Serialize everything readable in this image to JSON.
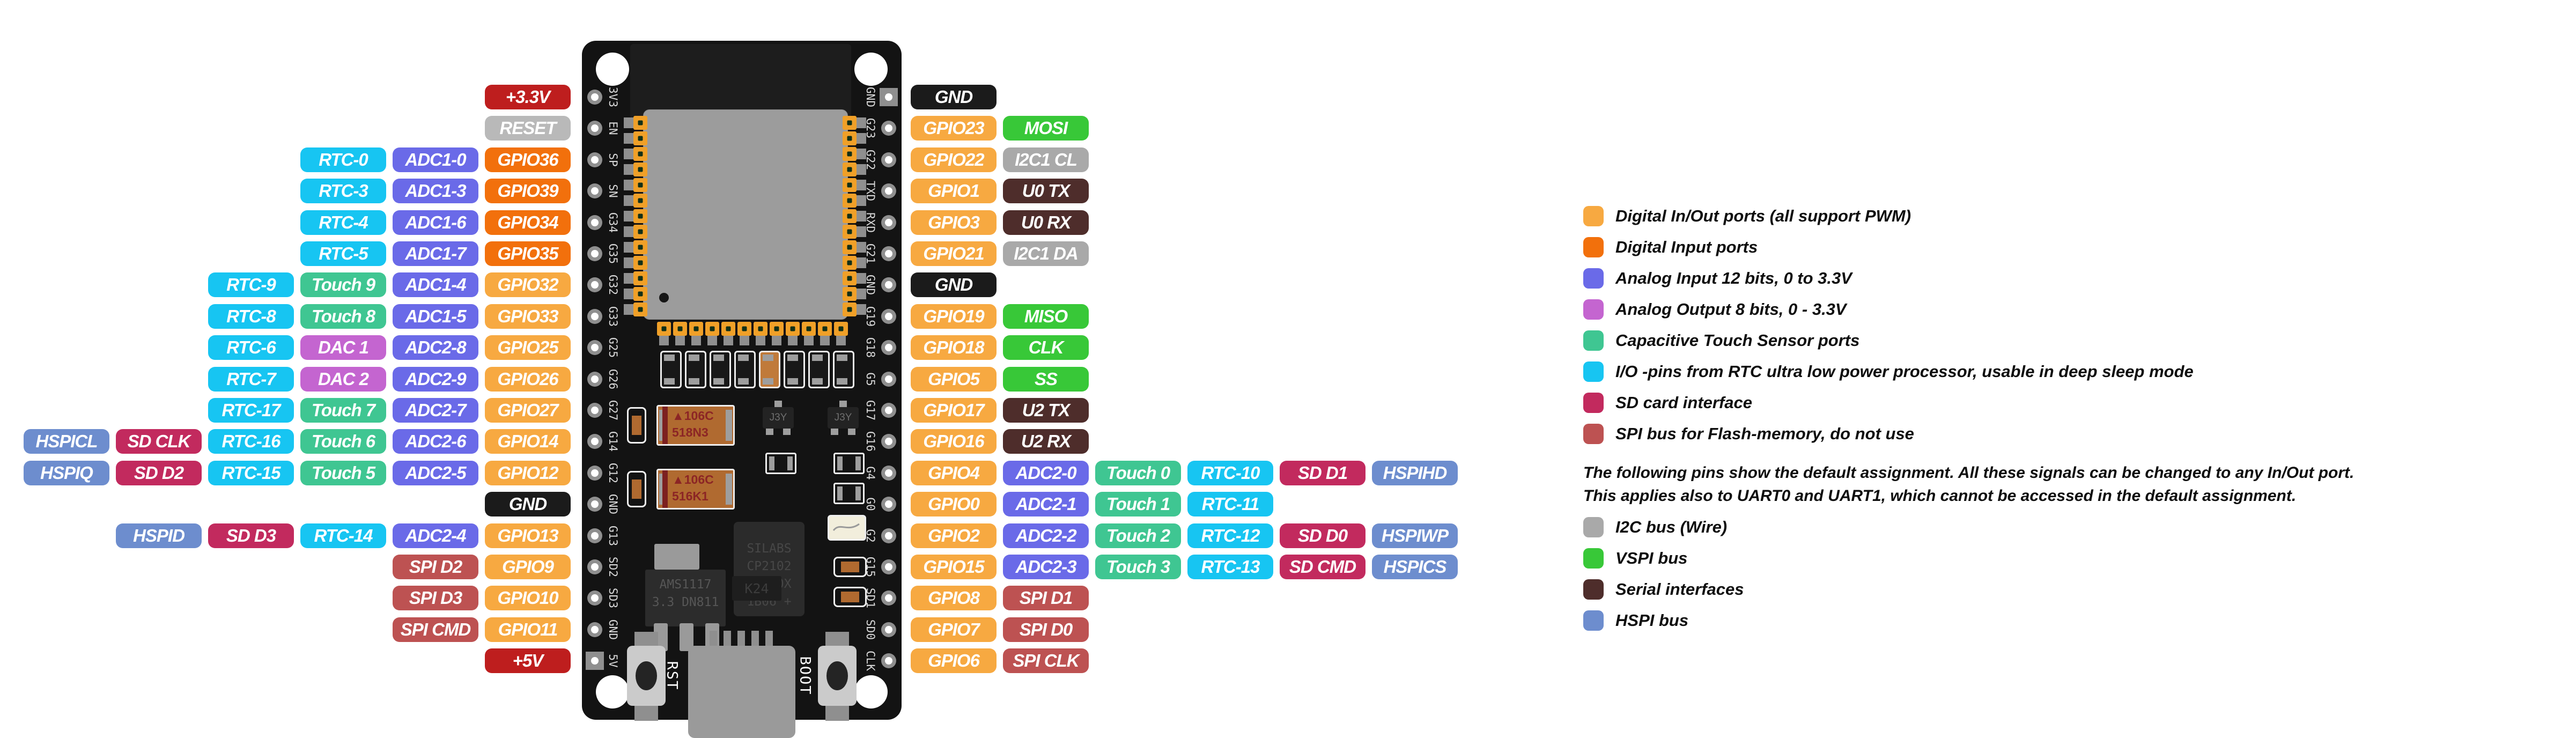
{
  "colors": {
    "io": "#F7A941",
    "in": "#F2700C",
    "adc": "#6A6AE8",
    "dac": "#C465D0",
    "touch": "#3FC692",
    "rtc": "#17C5F2",
    "sd": "#C22A5E",
    "spiflash": "#BD5252",
    "i2c": "#A9A9A9",
    "vspi": "#38C838",
    "serial": "#4E2D2B",
    "hspi": "#6D8DCE",
    "gnd": "#1B1B1B",
    "power": "#BE1E1E",
    "reset": "#B9B9B9"
  },
  "pins": {
    "left_rows": [
      [
        [
          "+3.3V",
          "power"
        ]
      ],
      [
        [
          "RESET",
          "reset"
        ]
      ],
      [
        [
          "RTC-0",
          "rtc"
        ],
        [
          "ADC1-0",
          "adc"
        ],
        [
          "GPIO36",
          "in"
        ]
      ],
      [
        [
          "RTC-3",
          "rtc"
        ],
        [
          "ADC1-3",
          "adc"
        ],
        [
          "GPIO39",
          "in"
        ]
      ],
      [
        [
          "RTC-4",
          "rtc"
        ],
        [
          "ADC1-6",
          "adc"
        ],
        [
          "GPIO34",
          "in"
        ]
      ],
      [
        [
          "RTC-5",
          "rtc"
        ],
        [
          "ADC1-7",
          "adc"
        ],
        [
          "GPIO35",
          "in"
        ]
      ],
      [
        [
          "RTC-9",
          "rtc"
        ],
        [
          "Touch 9",
          "touch"
        ],
        [
          "ADC1-4",
          "adc"
        ],
        [
          "GPIO32",
          "io"
        ]
      ],
      [
        [
          "RTC-8",
          "rtc"
        ],
        [
          "Touch 8",
          "touch"
        ],
        [
          "ADC1-5",
          "adc"
        ],
        [
          "GPIO33",
          "io"
        ]
      ],
      [
        [
          "RTC-6",
          "rtc"
        ],
        [
          "DAC 1",
          "dac"
        ],
        [
          "ADC2-8",
          "adc"
        ],
        [
          "GPIO25",
          "io"
        ]
      ],
      [
        [
          "RTC-7",
          "rtc"
        ],
        [
          "DAC 2",
          "dac"
        ],
        [
          "ADC2-9",
          "adc"
        ],
        [
          "GPIO26",
          "io"
        ]
      ],
      [
        [
          "RTC-17",
          "rtc"
        ],
        [
          "Touch 7",
          "touch"
        ],
        [
          "ADC2-7",
          "adc"
        ],
        [
          "GPIO27",
          "io"
        ]
      ],
      [
        [
          "HSPICL",
          "hspi"
        ],
        [
          "SD CLK",
          "sd"
        ],
        [
          "RTC-16",
          "rtc"
        ],
        [
          "Touch 6",
          "touch"
        ],
        [
          "ADC2-6",
          "adc"
        ],
        [
          "GPIO14",
          "io"
        ]
      ],
      [
        [
          "HSPIQ",
          "hspi"
        ],
        [
          "SD D2",
          "sd"
        ],
        [
          "RTC-15",
          "rtc"
        ],
        [
          "Touch 5",
          "touch"
        ],
        [
          "ADC2-5",
          "adc"
        ],
        [
          "GPIO12",
          "io"
        ]
      ],
      [
        [
          "GND",
          "gnd"
        ]
      ],
      [
        [
          "HSPID",
          "hspi"
        ],
        [
          "SD D3",
          "sd"
        ],
        [
          "RTC-14",
          "rtc"
        ],
        [
          "ADC2-4",
          "adc"
        ],
        [
          "GPIO13",
          "io"
        ]
      ],
      [
        [
          "SPI D2",
          "spiflash"
        ],
        [
          "GPIO9",
          "io"
        ]
      ],
      [
        [
          "SPI D3",
          "spiflash"
        ],
        [
          "GPIO10",
          "io"
        ]
      ],
      [
        [
          "SPI CMD",
          "spiflash"
        ],
        [
          "GPIO11",
          "io"
        ]
      ],
      [
        [
          "+5V",
          "power"
        ]
      ]
    ],
    "right_rows": [
      [
        [
          "GND",
          "gnd"
        ]
      ],
      [
        [
          "GPIO23",
          "io"
        ],
        [
          "MOSI",
          "vspi"
        ]
      ],
      [
        [
          "GPIO22",
          "io"
        ],
        [
          "I2C1 CL",
          "i2c"
        ]
      ],
      [
        [
          "GPIO1",
          "io"
        ],
        [
          "U0 TX",
          "serial"
        ]
      ],
      [
        [
          "GPIO3",
          "io"
        ],
        [
          "U0 RX",
          "serial"
        ]
      ],
      [
        [
          "GPIO21",
          "io"
        ],
        [
          "I2C1 DA",
          "i2c"
        ]
      ],
      [
        [
          "GND",
          "gnd"
        ]
      ],
      [
        [
          "GPIO19",
          "io"
        ],
        [
          "MISO",
          "vspi"
        ]
      ],
      [
        [
          "GPIO18",
          "io"
        ],
        [
          "CLK",
          "vspi"
        ]
      ],
      [
        [
          "GPIO5",
          "io"
        ],
        [
          "SS",
          "vspi"
        ]
      ],
      [
        [
          "GPIO17",
          "io"
        ],
        [
          "U2 TX",
          "serial"
        ]
      ],
      [
        [
          "GPIO16",
          "io"
        ],
        [
          "U2 RX",
          "serial"
        ]
      ],
      [
        [
          "GPIO4",
          "io"
        ],
        [
          "ADC2-0",
          "adc"
        ],
        [
          "Touch 0",
          "touch"
        ],
        [
          "RTC-10",
          "rtc"
        ],
        [
          "SD D1",
          "sd"
        ],
        [
          "HSPIHD",
          "hspi"
        ]
      ],
      [
        [
          "GPIO0",
          "io"
        ],
        [
          "ADC2-1",
          "adc"
        ],
        [
          "Touch 1",
          "touch"
        ],
        [
          "RTC-11",
          "rtc"
        ]
      ],
      [
        [
          "GPIO2",
          "io"
        ],
        [
          "ADC2-2",
          "adc"
        ],
        [
          "Touch 2",
          "touch"
        ],
        [
          "RTC-12",
          "rtc"
        ],
        [
          "SD D0",
          "sd"
        ],
        [
          "HSPIWP",
          "hspi"
        ]
      ],
      [
        [
          "GPIO15",
          "io"
        ],
        [
          "ADC2-3",
          "adc"
        ],
        [
          "Touch 3",
          "touch"
        ],
        [
          "RTC-13",
          "rtc"
        ],
        [
          "SD CMD",
          "sd"
        ],
        [
          "HSPICS",
          "hspi"
        ]
      ],
      [
        [
          "GPIO8",
          "io"
        ],
        [
          "SPI D1",
          "spiflash"
        ]
      ],
      [
        [
          "GPIO7",
          "io"
        ],
        [
          "SPI D0",
          "spiflash"
        ]
      ],
      [
        [
          "GPIO6",
          "io"
        ],
        [
          "SPI CLK",
          "spiflash"
        ]
      ]
    ]
  },
  "board": {
    "left_edge_labels": [
      "3V3",
      "EN",
      "SP",
      "SN",
      "G34",
      "G35",
      "G32",
      "G33",
      "G25",
      "G26",
      "G27",
      "G14",
      "G12",
      "GND",
      "G13",
      "SD2",
      "SD3",
      "GND",
      "5V"
    ],
    "right_edge_labels": [
      "GND",
      "G23",
      "G22",
      "TXD",
      "RXD",
      "G21",
      "GND",
      "G19",
      "G18",
      "G5",
      "G17",
      "G16",
      "G4",
      "G0",
      "G2",
      "G15",
      "SD1",
      "SD0",
      "CLK"
    ],
    "rst_label": "RST",
    "boot_label": "BOOT",
    "silkscreen": {
      "usb_chip": [
        "SILABS",
        "CP2102",
        "DCL00X",
        "1B06 +"
      ],
      "regulator": [
        "AMS1117",
        "3.3 DN811"
      ],
      "cap1": [
        "▲106C",
        "518N3"
      ],
      "cap2": [
        "▲106C",
        "516K1"
      ],
      "transistor": "J3Y",
      "diode": "K24"
    }
  },
  "legend": {
    "items_top": [
      {
        "color": "io",
        "text": "Digital In/Out ports (all support PWM)"
      },
      {
        "color": "in",
        "text": "Digital Input ports"
      },
      {
        "color": "adc",
        "text": "Analog Input 12 bits, 0 to 3.3V"
      },
      {
        "color": "dac",
        "text": "Analog Output 8 bits, 0 - 3.3V"
      },
      {
        "color": "touch",
        "text": "Capacitive Touch Sensor ports"
      },
      {
        "color": "rtc",
        "text": "I/O -pins from RTC ultra low power processor, usable in deep sleep mode"
      },
      {
        "color": "sd",
        "text": "SD card interface"
      },
      {
        "color": "spiflash",
        "text": "SPI bus for Flash-memory, do not use"
      }
    ],
    "note_lines": [
      "The following pins show the default assignment. All these signals can be changed to any In/Out port.",
      "This applies also to UART0 and UART1, which cannot be accessed in the default assignment."
    ],
    "items_bottom": [
      {
        "color": "i2c",
        "text": "I2C bus (Wire)"
      },
      {
        "color": "vspi",
        "text": "VSPI bus"
      },
      {
        "color": "serial",
        "text": "Serial interfaces"
      },
      {
        "color": "hspi",
        "text": "HSPI bus"
      }
    ]
  }
}
